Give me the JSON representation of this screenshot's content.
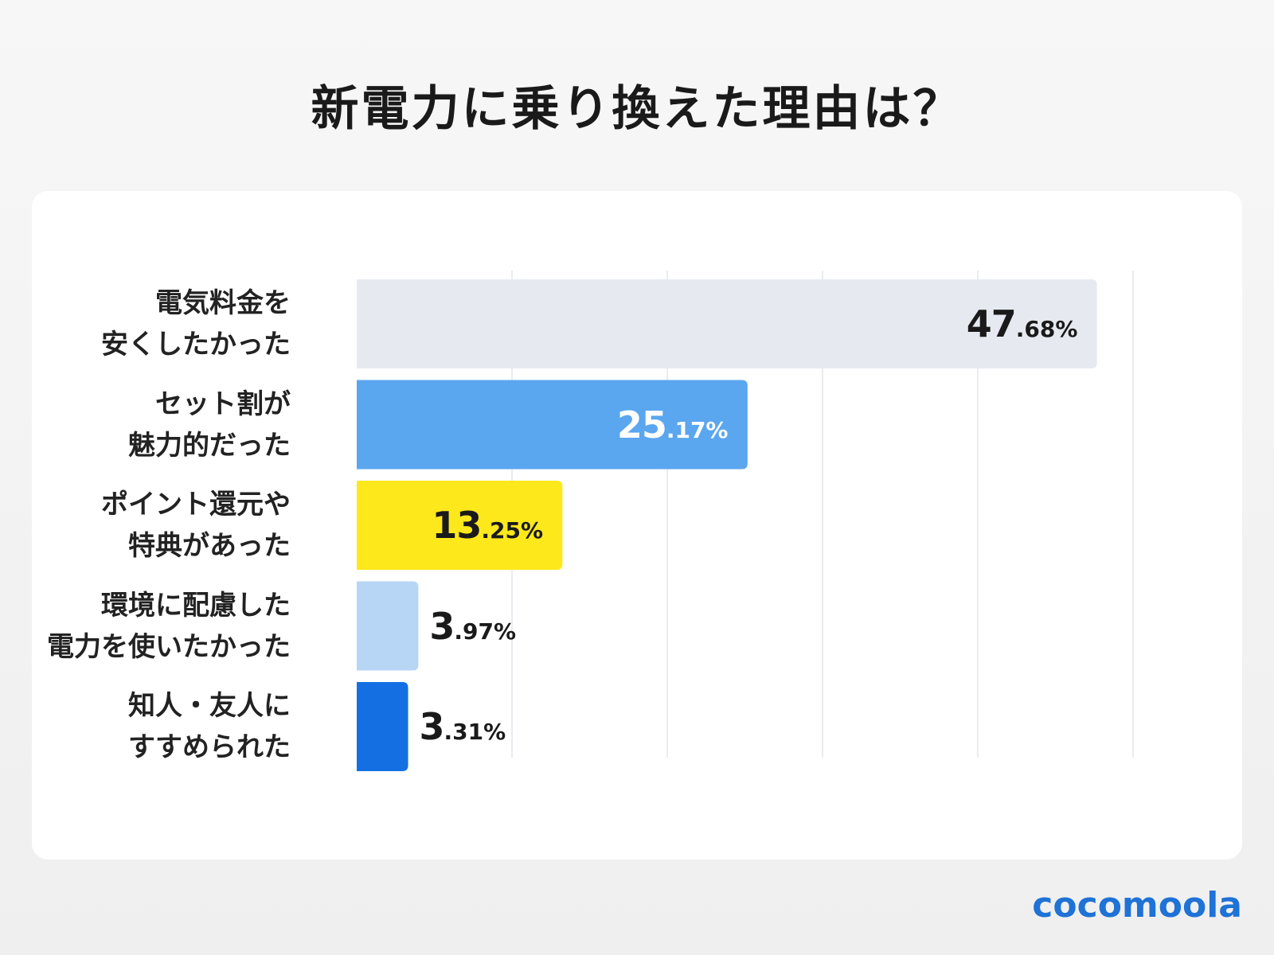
{
  "title": "新電力に乗り換えた理由は？",
  "brand": "cocomoola",
  "chart_data": {
    "type": "bar",
    "orientation": "horizontal",
    "title": "新電力に乗り換えた理由は？",
    "unit": "%",
    "xlim": [
      0,
      50
    ],
    "grid": true,
    "categories": [
      [
        "電気料金を",
        "安くしたかった"
      ],
      [
        "セット割が",
        "魅力的だった"
      ],
      [
        "ポイント還元や",
        "特典があった"
      ],
      [
        "環境に配慮した",
        "電力を使いたかった"
      ],
      [
        "知人・友人に",
        "すすめられた"
      ]
    ],
    "values": [
      47.68,
      25.17,
      13.25,
      3.97,
      3.31
    ],
    "value_labels": [
      {
        "int": "47",
        "frac": ".68%"
      },
      {
        "int": "25",
        "frac": ".17%"
      },
      {
        "int": "13",
        "frac": ".25%"
      },
      {
        "int": "3",
        "frac": ".97%"
      },
      {
        "int": "3",
        "frac": ".31%"
      }
    ],
    "colors": [
      "#e6eaf0",
      "#5aa6ef",
      "#fde81c",
      "#b7d6f6",
      "#1470e2"
    ],
    "label_colors": [
      "#1a1a1a",
      "#ffffff",
      "#1a1a1a",
      "#1a1a1a",
      "#1a1a1a"
    ]
  }
}
